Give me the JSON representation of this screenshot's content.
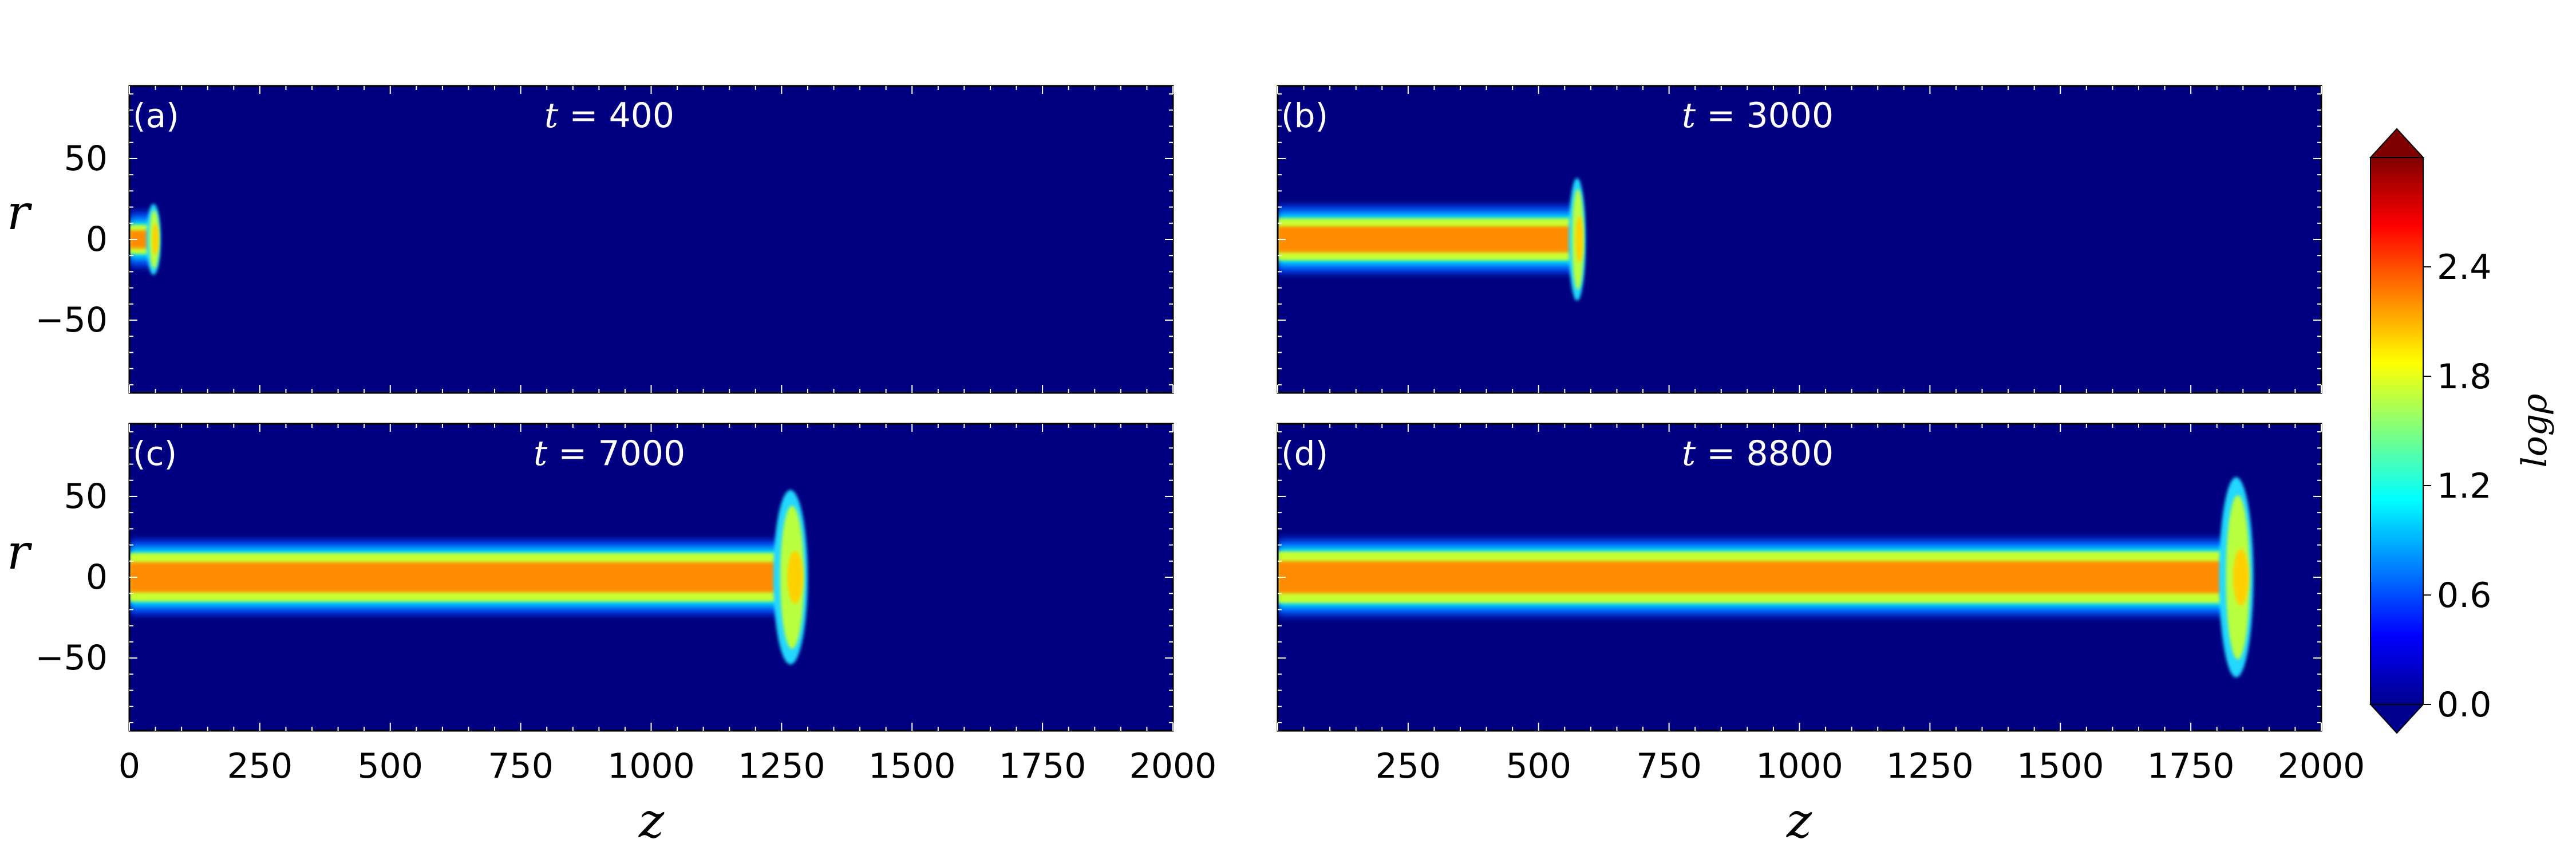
{
  "colors": {
    "background": "#000080",
    "jet_core": "#ff8c00",
    "jet_edge": "#00ffff",
    "colormap": "jet"
  },
  "chart_data": {
    "type": "heatmap",
    "quantity_label": "logρ",
    "x_axis": {
      "label": "z",
      "range": [
        0,
        2000
      ],
      "ticks": [
        0,
        250,
        500,
        750,
        1000,
        1250,
        1500,
        1750,
        2000
      ]
    },
    "x_axis_right": {
      "label": "z",
      "range": [
        0,
        2000
      ],
      "ticks": [
        250,
        500,
        750,
        1000,
        1250,
        1500,
        1750,
        2000
      ]
    },
    "y_axis": {
      "label": "r",
      "range": [
        -95,
        95
      ],
      "ticks": [
        50,
        0,
        -50
      ]
    },
    "colorbar": {
      "label": "logρ",
      "range": [
        0.0,
        3.0
      ],
      "ticks": [
        0.0,
        0.6,
        1.2,
        1.8,
        2.4
      ],
      "tick_labels": [
        "0.0",
        "0.6",
        "1.2",
        "1.8",
        "2.4"
      ],
      "extend": "both"
    },
    "panels": [
      {
        "id": "a",
        "label": "(a)",
        "time_text": "t = 400",
        "time": 400,
        "jet_length": 60,
        "jet_halfwidth": 9,
        "cocoon_halfheight": 22
      },
      {
        "id": "b",
        "label": "(b)",
        "time_text": "t = 3000",
        "time": 3000,
        "jet_length": 590,
        "jet_halfwidth": 13,
        "cocoon_halfheight": 38
      },
      {
        "id": "c",
        "label": "(c)",
        "time_text": "t = 7000",
        "time": 7000,
        "jet_length": 1300,
        "jet_halfwidth": 15,
        "cocoon_halfheight": 54
      },
      {
        "id": "d",
        "label": "(d)",
        "time_text": "t = 8800",
        "time": 8800,
        "jet_length": 1870,
        "jet_halfwidth": 16,
        "cocoon_halfheight": 62
      }
    ]
  }
}
